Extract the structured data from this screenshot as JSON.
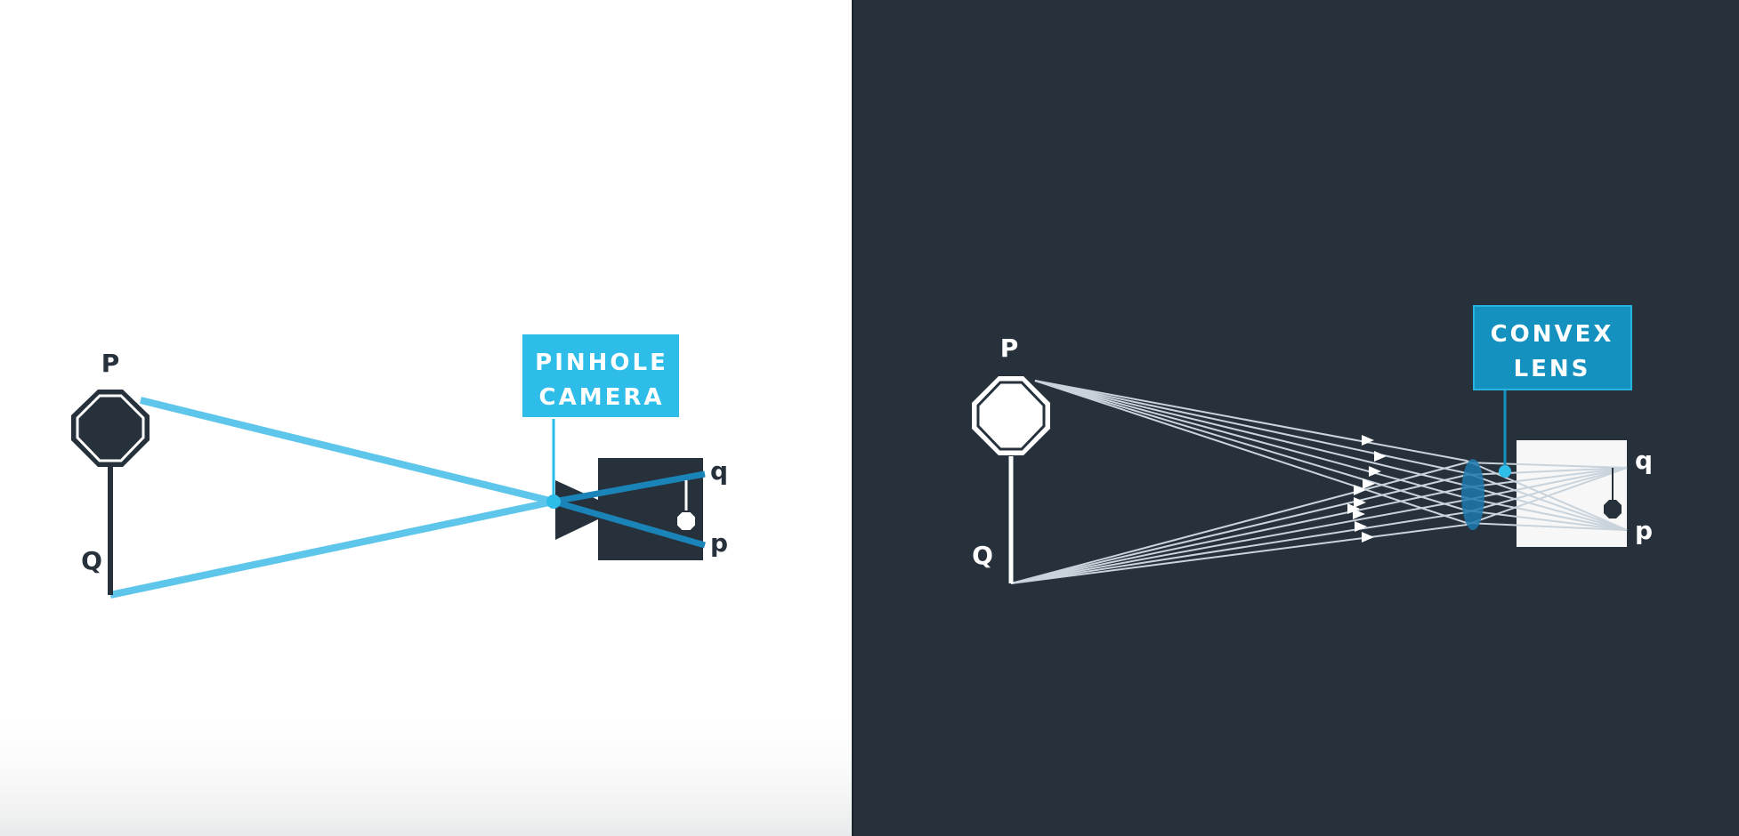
{
  "left_panel": {
    "tag_lines": [
      "PINHOLE",
      "CAMERA"
    ],
    "object_top_label": "P",
    "object_bottom_label": "Q",
    "image_top_label": "q",
    "image_bottom_label": "p"
  },
  "right_panel": {
    "tag_lines": [
      "CONVEX",
      "LENS"
    ],
    "object_top_label": "P",
    "object_bottom_label": "Q",
    "image_top_label": "q",
    "image_bottom_label": "p"
  },
  "colors": {
    "left_background": "#ffffff",
    "right_background": "#27313b",
    "accent_cyan": "#5ec6ea",
    "accent_dark_cyan": "#1a84b8",
    "tag_fill_left": "#2ebce8",
    "tag_fill_right": "#1591c0",
    "dark_shape": "#27313b",
    "ray_light": "#c9d3dc"
  }
}
